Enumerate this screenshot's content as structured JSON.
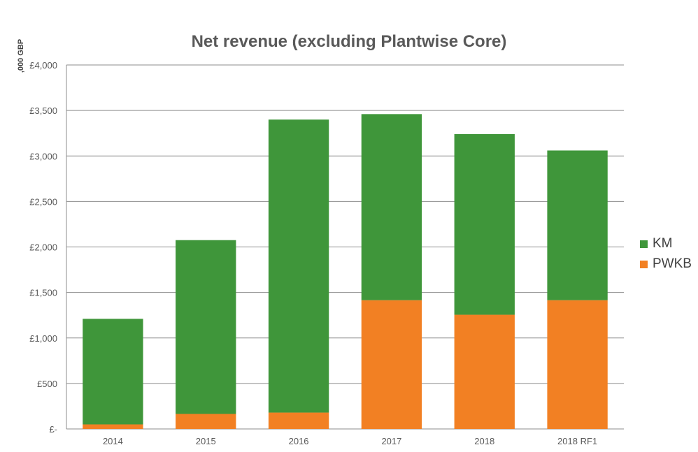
{
  "chart_data": {
    "type": "bar",
    "stacked": true,
    "title": "Net revenue (excluding Plantwise Core)",
    "ylabel": ",000 GBP",
    "xlabel": "",
    "categories": [
      "2014",
      "2015",
      "2016",
      "2017",
      "2018",
      "2018 RF1"
    ],
    "ylim": [
      0,
      4000
    ],
    "yticks": [
      0,
      500,
      1000,
      1500,
      2000,
      2500,
      3000,
      3500,
      4000
    ],
    "ytick_labels": [
      "£-",
      "£500",
      "£1,000",
      "£1,500",
      "£2,000",
      "£2,500",
      "£3,000",
      "£3,500",
      "£4,000"
    ],
    "grid": true,
    "legend_position": "right",
    "series": [
      {
        "name": "PWKB",
        "color": "#F28023",
        "values": [
          50,
          165,
          180,
          1415,
          1255,
          1415
        ]
      },
      {
        "name": "KM",
        "color": "#3F963A",
        "values": [
          1160,
          1910,
          3220,
          2045,
          1985,
          1645
        ]
      }
    ]
  },
  "legend": [
    {
      "name": "KM",
      "color": "#3F963A"
    },
    {
      "name": "PWKB",
      "color": "#F28023"
    }
  ]
}
